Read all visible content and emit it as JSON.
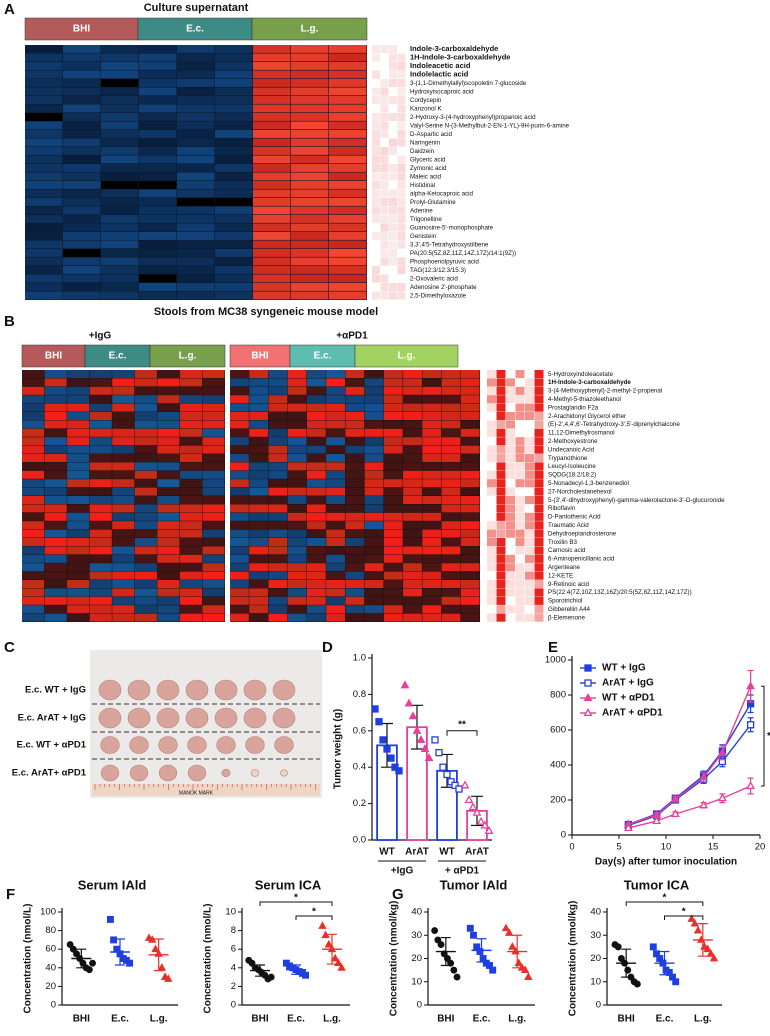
{
  "panels": {
    "a": {
      "label": "A",
      "title": "Culture supernatant",
      "groups": [
        "BHI",
        "E.c.",
        "L.g."
      ],
      "colors": [
        "#b55a5a",
        "#3e8a85",
        "#789f4c"
      ],
      "highlight_color": "#e8302a",
      "rows": [
        {
          "text": "Indole-3-carboxaldehyde",
          "highlight": true
        },
        {
          "text": "1H-Indole-3-carboxaldehyde",
          "highlight": true
        },
        {
          "text": "Indoleacetic acid",
          "highlight": true
        },
        {
          "text": "Indolelactic acid",
          "highlight": true
        },
        {
          "text": "3-(1,1-Dimethylallyl)scopoletin 7-glucoside"
        },
        {
          "text": "Hydroxyisocaproic acid"
        },
        {
          "text": "Cordycepin"
        },
        {
          "text": "Kanzonol K"
        },
        {
          "text": "2-Hydroxy-3-(4-hydroxyphenyl)propanoic acid"
        },
        {
          "text": "Valyl-Serine N-(3-Methylbut-2-EN-1-YL)-9H-purin-6-amine"
        },
        {
          "text": "D-Aspartic acid"
        },
        {
          "text": "Naringenin"
        },
        {
          "text": "Daidzein"
        },
        {
          "text": "Glyceric acid"
        },
        {
          "text": "Zymonic acid"
        },
        {
          "text": "Maleic acid"
        },
        {
          "text": "Histidinal"
        },
        {
          "text": "alpha-Ketocaproic acid"
        },
        {
          "text": "Prolyl-Glutamine"
        },
        {
          "text": "Adenine"
        },
        {
          "text": "Trigonelline"
        },
        {
          "text": "Guanosine-5'-monophosphate"
        },
        {
          "text": "Genistein"
        },
        {
          "text": "3,3',4'5-Tetrahydroxystilbene"
        },
        {
          "text": "PA(20:5(5Z,8Z,11Z,14Z,17Z)/14:1(9Z))"
        },
        {
          "text": "Phosphoenolpyruvic acid"
        },
        {
          "text": "TAG(12:3/12:3/15:3)"
        },
        {
          "text": "2-Oxovaleric acid"
        },
        {
          "text": "Adenosine 2'-phosphate"
        },
        {
          "text": "2,5-Dimethyloxazole"
        }
      ]
    },
    "b": {
      "label": "B",
      "title": "Stools from MC38 syngeneic mouse model",
      "groups": [
        "BHI",
        "E.c.",
        "L.g."
      ],
      "highlight_color": "#e8302a",
      "conditions": [
        {
          "name": "+IgG",
          "colors": [
            "#b55a5a",
            "#3e8a85",
            "#789f4c"
          ]
        },
        {
          "name": "+αPD1",
          "colors": [
            "#f07272",
            "#5dbdb0",
            "#a2d262"
          ]
        }
      ],
      "rows": [
        {
          "text": "5-Hydroxyindoleacetate"
        },
        {
          "text": "1H-Indole-3-carboxaldehyde",
          "highlight": true
        },
        {
          "text": "3-(4-Methoxyphenyl)-2-methyl-2-propenal"
        },
        {
          "text": "4-Methyl-5-thiazoleethanol"
        },
        {
          "text": "Prostaglandin F2a"
        },
        {
          "text": "2-Arachidonyl Glycerol ether"
        },
        {
          "text": "(E)-2',4,4',6'-Tetrahydroxy-3',5'-diprenylchalcone"
        },
        {
          "text": "11,12-Dimethylrosmanol"
        },
        {
          "text": "2-Methoxyestrone"
        },
        {
          "text": "Undecanoic Acid"
        },
        {
          "text": "Trypanothione"
        },
        {
          "text": "Leucyl-Isoleucine"
        },
        {
          "text": "SQDG(18:2/18:2)"
        },
        {
          "text": "5-Nonadecyl-1,3-benzenediol"
        },
        {
          "text": "27-Norcholestanehexol"
        },
        {
          "text": "5-(3',4'-dihydroxyphenyl)-gamma-valerolactone-3'-O-glucuronide"
        },
        {
          "text": "Riboflavin"
        },
        {
          "text": "D-Pantothenic Acid"
        },
        {
          "text": "Traumatic Acid"
        },
        {
          "text": "Dehydroepiandrosterone"
        },
        {
          "text": "Troxilin B3"
        },
        {
          "text": "Carnosic acid"
        },
        {
          "text": "6-Aminopenicillanic acid"
        },
        {
          "text": "Argenteane"
        },
        {
          "text": "12-KETE"
        },
        {
          "text": "9-Retinoic acid"
        },
        {
          "text": "PS(22:4(7Z,10Z,13Z,16Z)/20:5(5Z,8Z,11Z,14Z,17Z))"
        },
        {
          "text": "Sporotrichiol"
        },
        {
          "text": "Gibberellin A44"
        },
        {
          "text": "β-Elemenone"
        }
      ]
    },
    "c": {
      "label": "C",
      "rows": [
        "E.c. WT + IgG",
        "E.c. ArAT + IgG",
        "E.c. WT + αPD1",
        "E.c. ArAT+ αPD1"
      ],
      "ruler": "MANOK MARK"
    }
  },
  "chart_data": [
    {
      "type": "bar",
      "panel": "D",
      "ylabel": "Tumor weight (g)",
      "categories": [
        "WT",
        "ArAT",
        "WT",
        "ArAT"
      ],
      "groups": [
        "+IgG",
        "+ αPD1"
      ],
      "values": [
        0.52,
        0.62,
        0.38,
        0.16
      ],
      "errors": [
        0.12,
        0.12,
        0.09,
        0.08
      ],
      "points": [
        [
          0.72,
          0.65,
          0.55,
          0.5,
          0.45,
          0.4,
          0.38
        ],
        [
          0.85,
          0.75,
          0.68,
          0.6,
          0.55,
          0.5,
          0.45
        ],
        [
          0.55,
          0.48,
          0.4,
          0.36,
          0.32,
          0.3,
          0.28
        ],
        [
          0.3,
          0.22,
          0.18,
          0.15,
          0.1,
          0.08,
          0.05
        ]
      ],
      "colors": [
        "#1f3fe0",
        "#e8409a",
        "#1f3fe0",
        "#e8409a"
      ],
      "markers": [
        "square",
        "triangle",
        "square",
        "triangle"
      ],
      "filled": [
        true,
        true,
        false,
        false
      ],
      "ylim": [
        0,
        1
      ],
      "yticks": [
        {
          "value": 0,
          "label": "0.0"
        },
        0.2,
        0.4,
        0.6,
        0.8,
        {
          "value": 1,
          "label": "1.0"
        }
      ],
      "annotation": "**"
    },
    {
      "type": "line",
      "panel": "E",
      "xlabel": "Day(s) after tumor inoculation",
      "x": [
        6,
        9,
        11,
        14,
        16,
        19
      ],
      "series": [
        {
          "name": "WT + IgG",
          "color": "#1f3fe0",
          "marker": "square",
          "filled": true,
          "values": [
            60,
            120,
            210,
            340,
            480,
            750
          ],
          "errors": [
            8,
            12,
            15,
            25,
            35,
            50
          ]
        },
        {
          "name": "ArAT + IgG",
          "color": "#1f3fe0",
          "marker": "square",
          "filled": false,
          "values": [
            55,
            110,
            200,
            320,
            420,
            630
          ],
          "errors": [
            8,
            12,
            15,
            25,
            30,
            40
          ]
        },
        {
          "name": "WT + αPD1",
          "color": "#e8409a",
          "marker": "triangle",
          "filled": true,
          "values": [
            60,
            115,
            205,
            330,
            470,
            850
          ],
          "errors": [
            8,
            12,
            15,
            25,
            40,
            90
          ]
        },
        {
          "name": "ArAT + αPD1",
          "color": "#e8409a",
          "marker": "triangle",
          "filled": false,
          "values": [
            40,
            80,
            120,
            170,
            210,
            280
          ],
          "errors": [
            6,
            10,
            12,
            15,
            25,
            45
          ]
        }
      ],
      "xlim": [
        0,
        20
      ],
      "xticks": [
        0,
        5,
        10,
        15,
        20
      ],
      "ylim": [
        0,
        1000
      ],
      "yticks": [
        0,
        200,
        400,
        600,
        800,
        1000
      ],
      "legend": "upper left",
      "annotation": "**"
    },
    {
      "type": "dot",
      "panel": "F",
      "title": "Serum IAld",
      "ylabel": "Concentration (nmol/L)",
      "categories": [
        "BHI",
        "E.c.",
        "L.g."
      ],
      "colors": [
        "#111111",
        "#1f3fe0",
        "#e8302a"
      ],
      "markers": [
        "circle",
        "square",
        "triangle"
      ],
      "points": [
        [
          65,
          60,
          55,
          50,
          45,
          40,
          38,
          45
        ],
        [
          92,
          70,
          60,
          55,
          50,
          48,
          45
        ],
        [
          72,
          70,
          60,
          55,
          40,
          30,
          28
        ]
      ],
      "means": [
        50,
        57,
        54
      ],
      "errors": [
        10,
        14,
        17
      ],
      "ylim": [
        0,
        100
      ],
      "yticks": [
        0,
        20,
        40,
        60,
        80,
        100
      ],
      "annotations": []
    },
    {
      "type": "dot",
      "title": "Serum ICA",
      "ylabel": "Concentration (nmol/L)",
      "categories": [
        "BHI",
        "E.c.",
        "L.g."
      ],
      "colors": [
        "#111111",
        "#1f3fe0",
        "#e8302a"
      ],
      "markers": [
        "circle",
        "square",
        "triangle"
      ],
      "points": [
        [
          4.8,
          4.5,
          4.0,
          3.8,
          3.5,
          3.2,
          2.8,
          3.0
        ],
        [
          4.5,
          4.2,
          4.0,
          3.8,
          3.6,
          3.4,
          3.2
        ],
        [
          8.5,
          7.5,
          6.5,
          6.0,
          5.0,
          4.5,
          4.0
        ]
      ],
      "means": [
        3.7,
        3.8,
        6.0
      ],
      "errors": [
        0.6,
        0.5,
        1.6
      ],
      "ylim": [
        0,
        10
      ],
      "yticks": [
        0,
        2,
        4,
        6,
        8,
        10
      ],
      "annotations": [
        "*",
        "*"
      ]
    },
    {
      "type": "dot",
      "panel": "G",
      "title": "Tumor IAld",
      "ylabel": "Concentration (nmol/kg)",
      "categories": [
        "BHI",
        "E.c.",
        "L.g."
      ],
      "colors": [
        "#111111",
        "#1f3fe0",
        "#e8302a"
      ],
      "markers": [
        "circle",
        "square",
        "triangle"
      ],
      "points": [
        [
          32,
          28,
          26,
          22,
          20,
          18,
          15,
          12
        ],
        [
          33,
          30,
          25,
          23,
          20,
          18,
          17,
          15
        ],
        [
          33,
          31,
          25,
          23,
          18,
          16,
          15,
          12
        ]
      ],
      "means": [
        23,
        23.5,
        23
      ],
      "errors": [
        6,
        5,
        7
      ],
      "ylim": [
        0,
        40
      ],
      "yticks": [
        0,
        10,
        20,
        30,
        40
      ],
      "annotations": []
    },
    {
      "type": "dot",
      "title": "Tumor ICA",
      "ylabel": "Concentration (nmol/kg)",
      "categories": [
        "BHI",
        "E.c.",
        "L.g."
      ],
      "colors": [
        "#111111",
        "#1f3fe0",
        "#e8302a"
      ],
      "markers": [
        "circle",
        "square",
        "triangle"
      ],
      "points": [
        [
          26,
          25,
          20,
          18,
          15,
          12,
          10,
          9
        ],
        [
          25,
          22,
          20,
          18,
          15,
          14,
          12,
          10
        ],
        [
          37,
          35,
          32,
          28,
          25,
          24,
          22,
          20
        ]
      ],
      "means": [
        18,
        18,
        28
      ],
      "errors": [
        6,
        5,
        7
      ],
      "ylim": [
        0,
        40
      ],
      "yticks": [
        0,
        10,
        20,
        30,
        40
      ],
      "annotations": [
        "*",
        "*"
      ]
    }
  ]
}
